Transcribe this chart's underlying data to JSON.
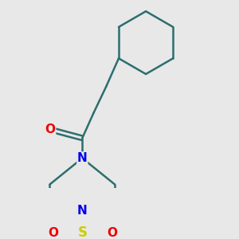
{
  "bg_color": "#e8e8e8",
  "bond_color": "#2d6e6e",
  "N_color": "#0000ee",
  "O_color": "#ee0000",
  "S_color": "#cccc00",
  "line_width": 1.8,
  "fig_width": 3.0,
  "fig_height": 3.0,
  "dpi": 100,
  "xlim": [
    0,
    300
  ],
  "ylim": [
    0,
    300
  ]
}
